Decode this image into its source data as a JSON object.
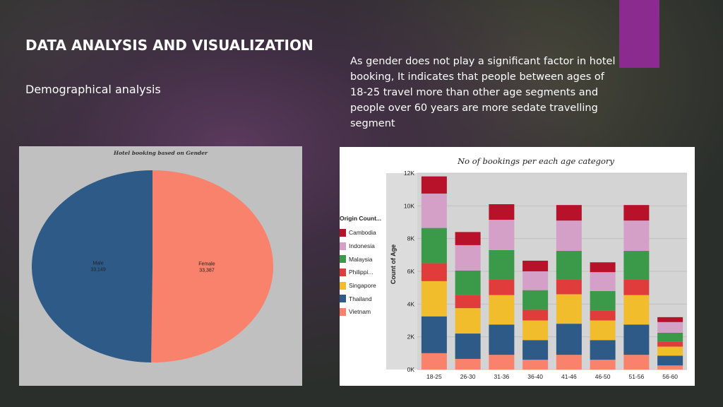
{
  "slide": {
    "title": "DATA ANALYSIS AND VISUALIZATION",
    "subtitle": "Demographical analysis",
    "paragraph": "As gender does not play a significant factor in hotel booking, It indicates that people between ages of 18-25 travel more than other age segments and people over 60 years are more sedate travelling segment",
    "accent_color": "#8b2a8f"
  },
  "chart_data": [
    {
      "type": "pie",
      "title": "Hotel booking based on Gender",
      "slices": [
        {
          "label": "Male",
          "value": 33149,
          "display": "33,149",
          "color": "#2e5a87"
        },
        {
          "label": "Female",
          "value": 33387,
          "display": "33,387",
          "color": "#f8826c"
        }
      ]
    },
    {
      "type": "bar",
      "stacked": true,
      "title": "No of bookings per each age category",
      "xlabel": "",
      "ylabel": "Count of Age",
      "categories": [
        "18-25",
        "26-30",
        "31-36",
        "36-40",
        "41-46",
        "46-50",
        "51-56",
        "56-60"
      ],
      "ylim": [
        0,
        12000
      ],
      "yticks": [
        0,
        2000,
        4000,
        6000,
        8000,
        10000,
        12000
      ],
      "ytick_labels": [
        "0K",
        "2K",
        "4K",
        "6K",
        "8K",
        "10K",
        "12K"
      ],
      "legend_title": "Origin Count...",
      "legend_position": "left",
      "grid": true,
      "series": [
        {
          "name": "Vietnam",
          "color": "#f8826c",
          "values": [
            1000,
            650,
            900,
            600,
            900,
            600,
            900,
            250
          ]
        },
        {
          "name": "Thailand",
          "color": "#2e5a87",
          "values": [
            2250,
            1550,
            1850,
            1200,
            1900,
            1200,
            1850,
            600
          ]
        },
        {
          "name": "Singapore",
          "color": "#f1bd2d",
          "values": [
            2150,
            1550,
            1800,
            1200,
            1800,
            1200,
            1800,
            550
          ]
        },
        {
          "name": "Philippi...",
          "color": "#e03c3c",
          "values": [
            1100,
            800,
            950,
            650,
            900,
            600,
            950,
            300
          ]
        },
        {
          "name": "Malaysia",
          "color": "#3a9a4a",
          "values": [
            2150,
            1500,
            1800,
            1200,
            1750,
            1200,
            1750,
            550
          ]
        },
        {
          "name": "Indonesia",
          "color": "#d4a0c8",
          "values": [
            2100,
            1550,
            1850,
            1150,
            1850,
            1150,
            1850,
            650
          ]
        },
        {
          "name": "Cambodia",
          "color": "#b8112a",
          "values": [
            1050,
            800,
            950,
            650,
            950,
            600,
            950,
            300
          ]
        }
      ]
    }
  ]
}
